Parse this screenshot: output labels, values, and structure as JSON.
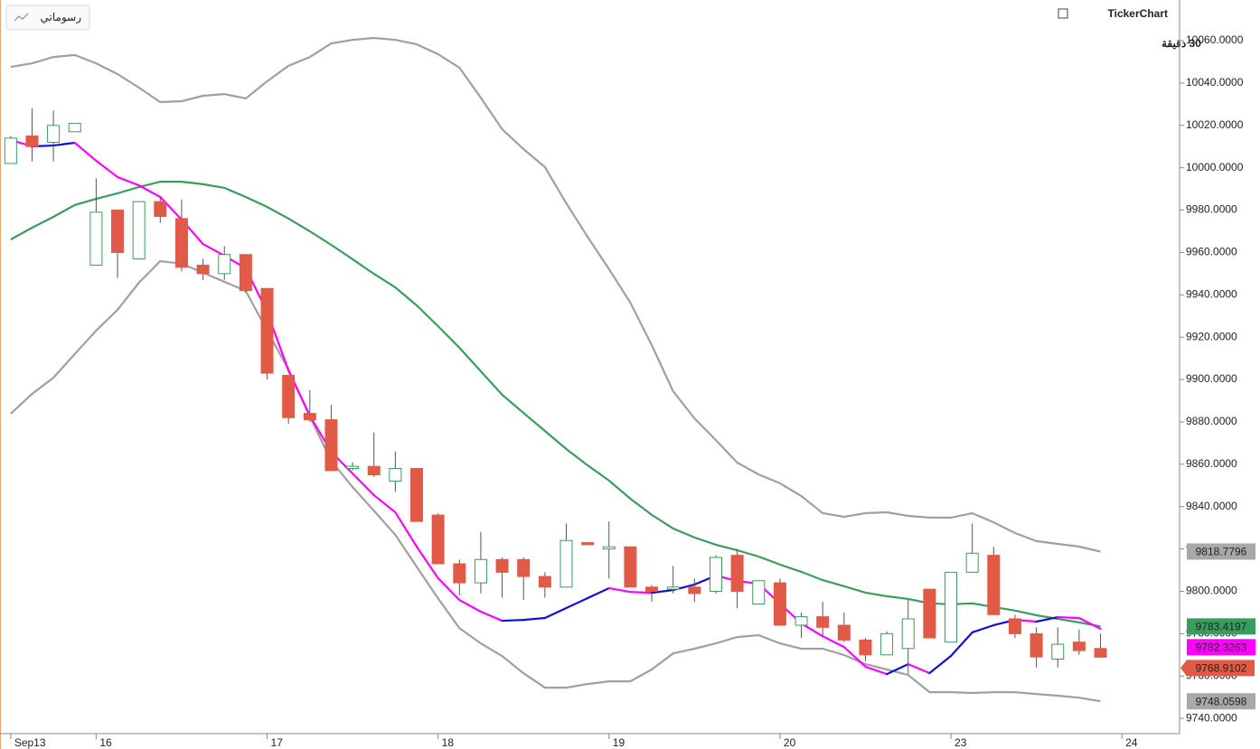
{
  "brand": "TickerChart",
  "interval": "30 دقيقة",
  "drawings_button": "رسوماتي",
  "chart_data": {
    "type": "candlestick",
    "xlim": [
      -0.5,
      54.7
    ],
    "xticks": [
      {
        "value": 0,
        "label": "Sep13"
      },
      {
        "value": 4,
        "label": "16"
      },
      {
        "value": 12,
        "label": "17"
      },
      {
        "value": 20,
        "label": "18"
      },
      {
        "value": 28,
        "label": "19"
      },
      {
        "value": 36,
        "label": "20"
      },
      {
        "value": 44,
        "label": "23"
      },
      {
        "value": 52,
        "label": "24"
      }
    ],
    "ylim": [
      9732.8,
      10079.2
    ],
    "yticks": [
      {
        "value": 9740,
        "label": "9740.0000"
      },
      {
        "value": 9760,
        "label": "9760.0000"
      },
      {
        "value": 9780,
        "label": "9780.0000"
      },
      {
        "value": 9800,
        "label": "9800.0000"
      },
      {
        "value": 9820,
        "label": "9820.0000"
      },
      {
        "value": 9840,
        "label": "9840.0000"
      },
      {
        "value": 9860,
        "label": "9860.0000"
      },
      {
        "value": 9880,
        "label": "9880.0000"
      },
      {
        "value": 9900,
        "label": "9900.0000"
      },
      {
        "value": 9920,
        "label": "9920.0000"
      },
      {
        "value": 9940,
        "label": "9940.0000"
      },
      {
        "value": 9960,
        "label": "9960.0000"
      },
      {
        "value": 9980,
        "label": "9980.0000"
      },
      {
        "value": 10000,
        "label": "10000.0000"
      },
      {
        "value": 10020,
        "label": "10020.0000"
      },
      {
        "value": 10040,
        "label": "10040.0000"
      },
      {
        "value": 10060,
        "label": "10060.0000"
      }
    ],
    "grid": false,
    "candles": {
      "up_color": "#3a9d5d",
      "down_color": "#e05a47",
      "last_label": "9768.9102",
      "open": [
        10002,
        10015,
        10012,
        10017,
        9954,
        9980,
        9957,
        9984,
        9976,
        9954,
        9950,
        9959,
        9943,
        9902,
        9884,
        9881,
        9858,
        9859,
        9852,
        9858,
        9836,
        9813,
        9804,
        9815,
        9815,
        9807,
        9802,
        9823,
        9820,
        9821,
        9802,
        9801,
        9802,
        9800,
        9817,
        9794,
        9804,
        9784,
        9788,
        9784,
        9777,
        9770,
        9773,
        9801,
        9776,
        9809,
        9817,
        9787,
        9780,
        9768,
        9776,
        9773
      ],
      "high": [
        10015,
        10028,
        10027,
        10021,
        9995,
        9980,
        9984,
        9986,
        9985,
        9957,
        9963,
        9959,
        9943,
        9902,
        9895,
        9888,
        9861,
        9875,
        9866,
        9858,
        9837,
        9815,
        9828,
        9816,
        9816,
        9809,
        9832,
        9823,
        9833,
        9821,
        9803,
        9812,
        9806,
        9817,
        9820,
        9805,
        9806,
        9790,
        9795,
        9790,
        9778,
        9781,
        9796,
        9801,
        9809,
        9832,
        9821,
        9789,
        9783,
        9783,
        9782,
        9780
      ],
      "low": [
        10002,
        10003,
        10003,
        10017,
        9954,
        9948,
        9957,
        9974,
        9951,
        9947,
        9947,
        9941,
        9900,
        9879,
        9880,
        9857,
        9857,
        9854,
        9847,
        9833,
        9813,
        9798,
        9799,
        9797,
        9796,
        9797,
        9802,
        9822,
        9806,
        9802,
        9795,
        9799,
        9795,
        9799,
        9792,
        9794,
        9784,
        9778,
        9779,
        9776,
        9767,
        9770,
        9761,
        9778,
        9776,
        9809,
        9789,
        9778,
        9764,
        9764,
        9770,
        9768.9102
      ],
      "close": [
        10014,
        10010,
        10020,
        10021,
        9979,
        9960,
        9984,
        9977,
        9953,
        9950,
        9959,
        9942,
        9903,
        9882,
        9881,
        9857,
        9859,
        9855,
        9858,
        9833,
        9813,
        9804,
        9815,
        9809,
        9807,
        9802,
        9824,
        9822,
        9821,
        9802,
        9800,
        9802,
        9799,
        9816,
        9800,
        9805,
        9784,
        9788,
        9783,
        9777,
        9770,
        9780,
        9787,
        9778,
        9809,
        9818,
        9789,
        9780,
        9769,
        9775,
        9772,
        9768.9102
      ]
    },
    "lines": [
      {
        "color": "#a0a0a0",
        "last_label": "9818.7796",
        "values": [
          10047.6,
          10049.3,
          10052.3,
          10053.2,
          10049.3,
          10044.2,
          10037.8,
          10031.0,
          10031.4,
          10034.0,
          10034.8,
          10032.7,
          10040.8,
          10048.1,
          10052.3,
          10058.7,
          10060.4,
          10061.3,
          10060.4,
          10058.3,
          10053.6,
          10047.2,
          10033.1,
          10018.2,
          10008.8,
          10000.3,
          9983.2,
          9967.4,
          9952.1,
          9936.3,
          9916.2,
          9894.5,
          9881.7,
          9871.4,
          9860.8,
          9855.2,
          9851.0,
          9845.0,
          9836.9,
          9835.2,
          9836.9,
          9837.3,
          9835.6,
          9834.8,
          9834.8,
          9836.9,
          9832.6,
          9827.5,
          9823.7,
          9822.4,
          9821.1,
          9818.7796
        ]
      },
      {
        "color": "#3a9d5d",
        "last_label": "9783.4197",
        "values": [
          9966.1,
          9971.7,
          9976.8,
          9982.4,
          9985.3,
          9987.9,
          9990.9,
          9993.4,
          9993.4,
          9992.2,
          9990.5,
          9986.2,
          9981.5,
          9976.0,
          9970.0,
          9963.6,
          9956.8,
          9949.9,
          9943.5,
          9935.0,
          9925.2,
          9915.0,
          9903.9,
          9892.8,
          9884.2,
          9875.7,
          9867.2,
          9859.5,
          9852.3,
          9843.7,
          9836.1,
          9829.7,
          9825.4,
          9822.0,
          9819.4,
          9816.4,
          9812.6,
          9809.2,
          9805.3,
          9802.4,
          9799.4,
          9797.7,
          9796.4,
          9794.3,
          9793.9,
          9794.3,
          9792.6,
          9790.9,
          9788.7,
          9787.0,
          9785.3,
          9783.4197
        ]
      },
      {
        "color": "#a0a0a0",
        "last_label": "9748.0598",
        "values": [
          9883.8,
          9893.2,
          9900.9,
          9912.0,
          9923.1,
          9932.9,
          9945.7,
          9955.9,
          9954.7,
          9950.4,
          9946.2,
          9941.8,
          9923.1,
          9904.7,
          9882.5,
          9861.6,
          9849.2,
          9838.1,
          9826.6,
          9811.6,
          9796.7,
          9782.6,
          9775.4,
          9769.4,
          9761.3,
          9754.5,
          9754.5,
          9756.2,
          9757.5,
          9757.5,
          9763.1,
          9770.7,
          9772.9,
          9775.4,
          9778.4,
          9779.3,
          9775.4,
          9772.9,
          9772.9,
          9769.9,
          9765.6,
          9763.1,
          9760.5,
          9752.4,
          9752.4,
          9752.0,
          9752.4,
          9752.4,
          9751.5,
          9750.7,
          9749.8,
          9748.0598
        ]
      },
      {
        "color": "#ff00ff",
        "up_color": "#1010dd",
        "last_label": "9782.3263",
        "values": [
          10013.1,
          10010.1,
          10010.5,
          10011.8,
          10003.3,
          9995.6,
          9991.7,
          9986.2,
          9975.5,
          9964.0,
          9958.5,
          9952.5,
          9932.0,
          9904.3,
          9882.9,
          9865.9,
          9855.6,
          9845.4,
          9837.3,
          9821.1,
          9806.2,
          9795.9,
          9790.4,
          9786.1,
          9786.5,
          9787.4,
          9792.1,
          9796.8,
          9801.5,
          9799.7,
          9799.3,
          9800.6,
          9803.2,
          9807.4,
          9804.9,
          9803.6,
          9794.2,
          9784.8,
          9778.8,
          9773.7,
          9764.4,
          9760.9,
          9765.6,
          9761.4,
          9769.5,
          9780.6,
          9784.0,
          9786.5,
          9785.7,
          9787.8,
          9787.4,
          9782.3263
        ]
      }
    ]
  }
}
